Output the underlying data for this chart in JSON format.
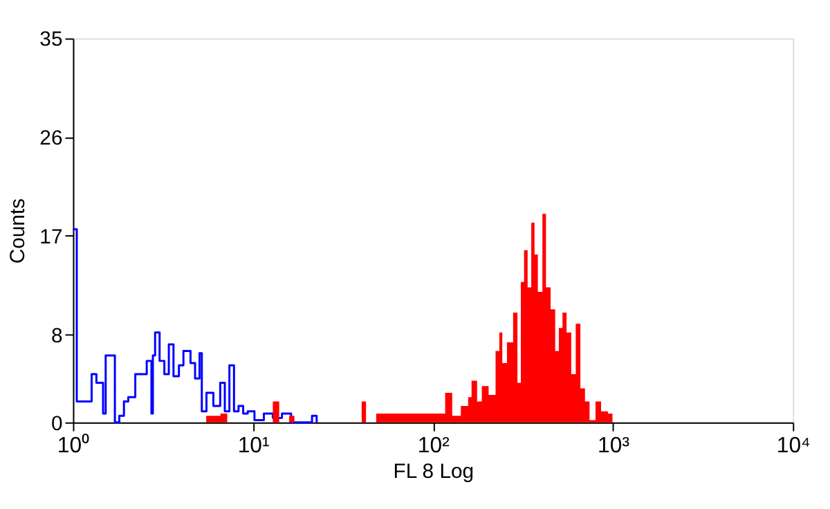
{
  "chart_data": {
    "type": "area",
    "xlabel": "FL 8 Log",
    "ylabel": "Counts",
    "xlim": [
      1,
      10000
    ],
    "ylim": [
      0,
      35
    ],
    "xticks": [
      {
        "value": 1,
        "label": "10⁰"
      },
      {
        "value": 10,
        "label": "10¹"
      },
      {
        "value": 100,
        "label": "10²"
      },
      {
        "value": 1000,
        "label": "10³"
      },
      {
        "value": 10000,
        "label": "10⁴"
      }
    ],
    "yticks": [
      0,
      8,
      17,
      26,
      35
    ],
    "log": "x",
    "grid": false,
    "series": [
      {
        "type": "step",
        "color": "#0000ff",
        "x": [
          1.0,
          1.02,
          1.05,
          1.11,
          1.2,
          1.27,
          1.35,
          1.47,
          1.52,
          1.61,
          1.71,
          1.81,
          1.92,
          2.03,
          2.22,
          2.43,
          2.57,
          2.73,
          2.78,
          2.86,
          3.03,
          3.22,
          3.41,
          3.62,
          3.88,
          4.11,
          4.5,
          4.77,
          5.05,
          5.2,
          5.52,
          6.03,
          6.58,
          6.98,
          7.4,
          7.85,
          8.32,
          8.83,
          9.36,
          10.2,
          11.5,
          12.9,
          14.5,
          16.3,
          21.3,
          22.6
        ],
        "values": [
          17.6,
          17.6,
          1.9,
          1.9,
          1.9,
          4.4,
          3.6,
          0.8,
          6.1,
          6.1,
          0,
          0.6,
          1.9,
          2.3,
          4.4,
          4.4,
          5.6,
          0.8,
          6.1,
          8.2,
          5.6,
          4.4,
          7.1,
          4.2,
          5.2,
          6.5,
          5.4,
          4.0,
          6.3,
          1.0,
          2.7,
          1.5,
          3.6,
          1.0,
          5.2,
          1.0,
          1.5,
          0.8,
          1.0,
          0.2,
          0.8,
          0.4,
          0.8,
          0,
          0.6,
          0
        ]
      },
      {
        "color": "#ff0000",
        "x": [
          5.5,
          6.6,
          7.2,
          12.9,
          14.0,
          15.9,
          17.0,
          40.2,
          42.5,
          48.4,
          54.5,
          65.0,
          73.1,
          89.7,
          104,
          117,
          128,
          143,
          157,
          164,
          176,
          187,
          204,
          223,
          234,
          243,
          258,
          279,
          295,
          308,
          321,
          336,
          352,
          367,
          383,
          406,
          425,
          451,
          478,
          501,
          525,
          553,
          587,
          622,
          660,
          700,
          742,
          801,
          860,
          939,
          995
        ],
        "values": [
          0.6,
          0.8,
          0,
          1.9,
          0,
          0.6,
          0,
          1.9,
          0,
          0.8,
          0.8,
          0.8,
          0.8,
          0.8,
          0.8,
          2.7,
          0.6,
          1.5,
          2.3,
          3.8,
          1.9,
          3.3,
          2.5,
          6.5,
          8.2,
          5.4,
          7.3,
          10.0,
          3.6,
          12.8,
          15.7,
          12.3,
          18.2,
          15.3,
          11.9,
          19.0,
          12.3,
          10.3,
          6.5,
          8.6,
          10.0,
          8.2,
          4.4,
          9.0,
          3.1,
          1.9,
          0.2,
          1.9,
          1.0,
          0.8,
          0
        ]
      }
    ]
  }
}
